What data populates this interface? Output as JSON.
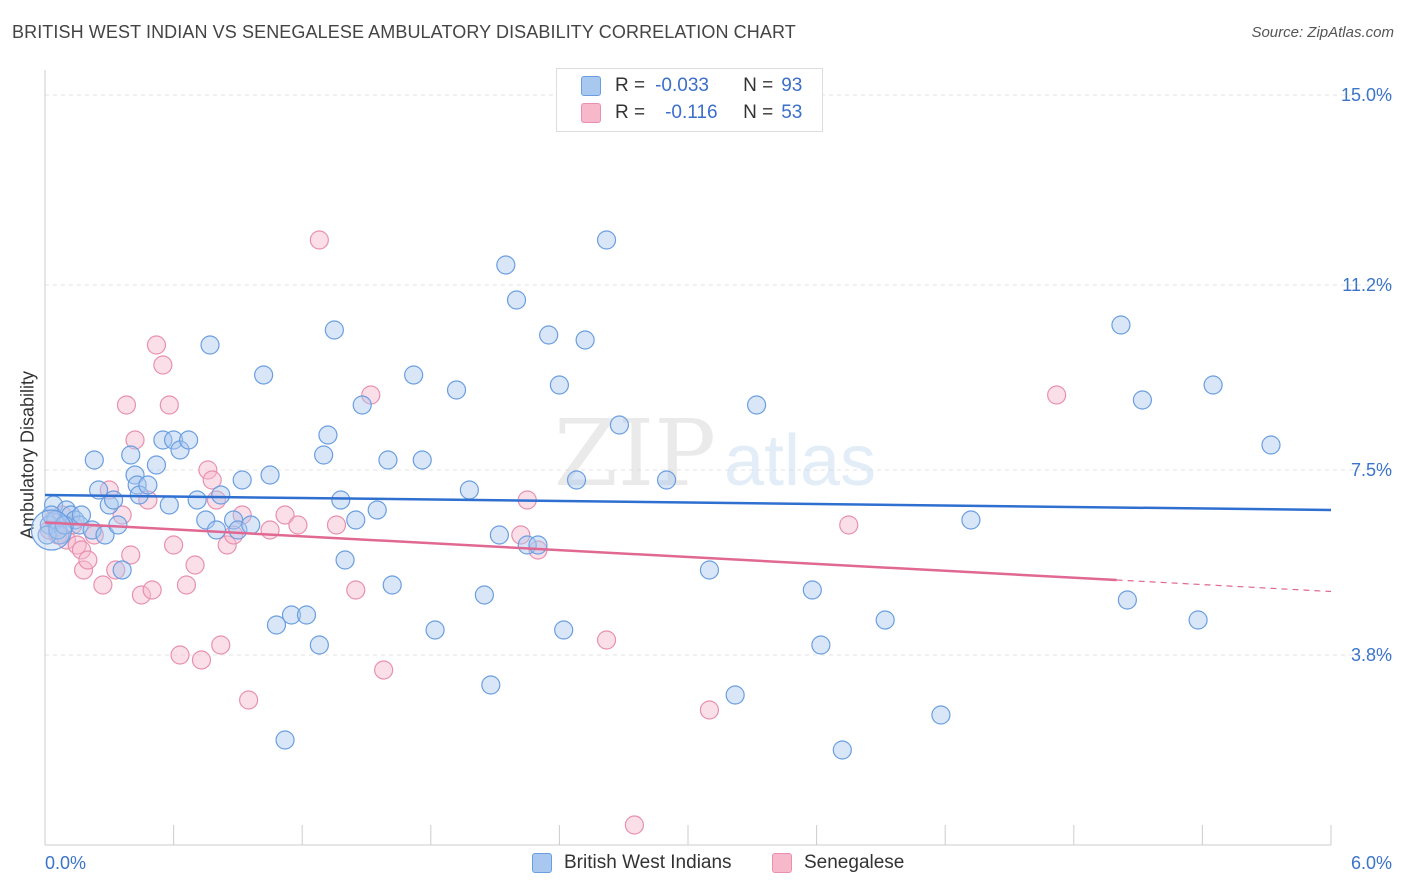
{
  "header": {
    "title": "BRITISH WEST INDIAN VS SENEGALESE AMBULATORY DISABILITY CORRELATION CHART",
    "source": "Source: ZipAtlas.com"
  },
  "watermark": {
    "zip": "ZIP",
    "atlas": "atlas"
  },
  "legend_top": {
    "rows": [
      {
        "r_label": "R =",
        "r_value": "-0.033",
        "n_label": "N =",
        "n_value": "93"
      },
      {
        "r_label": "R =",
        "r_value": "-0.116",
        "n_label": "N =",
        "n_value": "53"
      }
    ]
  },
  "colors": {
    "blue_fill": "#a8c8f0",
    "blue_stroke": "#6a9ee0",
    "blue_line": "#2e6fd0",
    "pink_fill": "#f7b8cc",
    "pink_stroke": "#e890ae",
    "pink_line": "#e06892",
    "tick_text": "#3b74c9",
    "grid": "#e3e3e3"
  },
  "chart_data": {
    "type": "scatter",
    "title": "BRITISH WEST INDIAN VS SENEGALESE AMBULATORY DISABILITY CORRELATION CHART",
    "xlabel": "",
    "ylabel": "Ambulatory Disability",
    "xlim": [
      0,
      6.0
    ],
    "ylim": [
      0,
      15.5
    ],
    "x_tick_labels": [
      "0.0%",
      "6.0%"
    ],
    "y_ticks": [
      3.8,
      7.5,
      11.2,
      15.0
    ],
    "y_tick_labels": [
      "3.8%",
      "7.5%",
      "11.2%",
      "15.0%"
    ],
    "grid": true,
    "legend_position": "bottom-center",
    "series": [
      {
        "name": "British West Indians",
        "r": -0.033,
        "n": 93,
        "trend": {
          "x": [
            0,
            6.0
          ],
          "y": [
            7.0,
            6.7
          ]
        },
        "points": [
          [
            0.02,
            6.4
          ],
          [
            0.04,
            6.8
          ],
          [
            0.05,
            6.5
          ],
          [
            0.07,
            6.2
          ],
          [
            0.1,
            6.7
          ],
          [
            0.12,
            6.6
          ],
          [
            0.14,
            6.5
          ],
          [
            0.16,
            6.4
          ],
          [
            0.17,
            6.6
          ],
          [
            0.22,
            6.3
          ],
          [
            0.23,
            7.7
          ],
          [
            0.25,
            7.1
          ],
          [
            0.28,
            6.2
          ],
          [
            0.3,
            6.8
          ],
          [
            0.32,
            6.9
          ],
          [
            0.36,
            5.5
          ],
          [
            0.4,
            7.8
          ],
          [
            0.42,
            7.4
          ],
          [
            0.43,
            7.2
          ],
          [
            0.44,
            7
          ],
          [
            0.48,
            7.2
          ],
          [
            0.52,
            7.6
          ],
          [
            0.55,
            8.1
          ],
          [
            0.58,
            6.8
          ],
          [
            0.6,
            8.1
          ],
          [
            0.63,
            7.9
          ],
          [
            0.67,
            8.1
          ],
          [
            0.71,
            6.9
          ],
          [
            0.75,
            6.5
          ],
          [
            0.77,
            10
          ],
          [
            0.8,
            6.3
          ],
          [
            0.82,
            7.0
          ],
          [
            0.88,
            6.5
          ],
          [
            0.9,
            6.3
          ],
          [
            0.92,
            7.3
          ],
          [
            0.96,
            6.4
          ],
          [
            1.02,
            9.4
          ],
          [
            1.05,
            7.4
          ],
          [
            1.08,
            4.4
          ],
          [
            1.12,
            2.1
          ],
          [
            1.15,
            4.6
          ],
          [
            1.22,
            4.6
          ],
          [
            1.28,
            4.0
          ],
          [
            1.3,
            7.8
          ],
          [
            1.32,
            8.2
          ],
          [
            1.35,
            10.3
          ],
          [
            1.38,
            6.9
          ],
          [
            1.4,
            5.7
          ],
          [
            1.45,
            6.5
          ],
          [
            1.48,
            8.8
          ],
          [
            1.55,
            6.7
          ],
          [
            1.6,
            7.7
          ],
          [
            1.62,
            5.2
          ],
          [
            1.72,
            9.4
          ],
          [
            1.76,
            7.7
          ],
          [
            1.82,
            4.3
          ],
          [
            1.92,
            9.1
          ],
          [
            1.98,
            7.1
          ],
          [
            2.05,
            5.0
          ],
          [
            2.08,
            3.2
          ],
          [
            2.12,
            6.2
          ],
          [
            2.15,
            11.6
          ],
          [
            2.2,
            10.9
          ],
          [
            2.25,
            6.0
          ],
          [
            2.3,
            6.0
          ],
          [
            2.35,
            10.2
          ],
          [
            2.4,
            9.2
          ],
          [
            2.42,
            4.3
          ],
          [
            2.48,
            7.3
          ],
          [
            2.52,
            10.1
          ],
          [
            2.62,
            12.1
          ],
          [
            2.68,
            8.4
          ],
          [
            2.9,
            7.3
          ],
          [
            3.1,
            5.5
          ],
          [
            3.22,
            3.0
          ],
          [
            3.32,
            8.8
          ],
          [
            3.58,
            5.1
          ],
          [
            3.62,
            4.0
          ],
          [
            3.72,
            1.9
          ],
          [
            3.92,
            4.5
          ],
          [
            4.18,
            2.6
          ],
          [
            4.32,
            6.5
          ],
          [
            5.02,
            10.4
          ],
          [
            5.05,
            4.9
          ],
          [
            5.12,
            8.9
          ],
          [
            5.38,
            4.5
          ],
          [
            5.45,
            9.2
          ],
          [
            5.72,
            8.0
          ],
          [
            0.01,
            6.2
          ],
          [
            0.06,
            6.3
          ],
          [
            0.03,
            6.6
          ],
          [
            0.09,
            6.4
          ],
          [
            0.34,
            6.4
          ]
        ]
      },
      {
        "name": "Senegalese",
        "r": -0.116,
        "n": 53,
        "trend": {
          "x": [
            0,
            5.0
          ],
          "y": [
            6.45,
            5.3
          ]
        },
        "trend_dashed": {
          "x": [
            5.0,
            6.0
          ],
          "y": [
            5.3,
            5.07
          ]
        },
        "points": [
          [
            0.02,
            6.3
          ],
          [
            0.04,
            6.5
          ],
          [
            0.06,
            6.2
          ],
          [
            0.08,
            6.6
          ],
          [
            0.1,
            6.1
          ],
          [
            0.13,
            6.4
          ],
          [
            0.15,
            6.0
          ],
          [
            0.17,
            5.9
          ],
          [
            0.18,
            5.5
          ],
          [
            0.2,
            5.7
          ],
          [
            0.23,
            6.2
          ],
          [
            0.27,
            5.2
          ],
          [
            0.3,
            7.1
          ],
          [
            0.33,
            5.5
          ],
          [
            0.36,
            6.6
          ],
          [
            0.38,
            8.8
          ],
          [
            0.4,
            5.8
          ],
          [
            0.42,
            8.1
          ],
          [
            0.45,
            5.0
          ],
          [
            0.48,
            6.9
          ],
          [
            0.5,
            5.1
          ],
          [
            0.52,
            10.0
          ],
          [
            0.55,
            9.6
          ],
          [
            0.58,
            8.8
          ],
          [
            0.6,
            6.0
          ],
          [
            0.63,
            3.8
          ],
          [
            0.66,
            5.2
          ],
          [
            0.7,
            5.6
          ],
          [
            0.73,
            3.7
          ],
          [
            0.76,
            7.5
          ],
          [
            0.78,
            7.3
          ],
          [
            0.8,
            6.9
          ],
          [
            0.82,
            4.0
          ],
          [
            0.85,
            6.0
          ],
          [
            0.88,
            6.2
          ],
          [
            0.92,
            6.6
          ],
          [
            0.95,
            2.9
          ],
          [
            1.05,
            6.3
          ],
          [
            1.12,
            6.6
          ],
          [
            1.18,
            6.4
          ],
          [
            1.28,
            12.1
          ],
          [
            1.36,
            6.4
          ],
          [
            1.45,
            5.1
          ],
          [
            1.52,
            9.0
          ],
          [
            1.58,
            3.5
          ],
          [
            2.22,
            6.2
          ],
          [
            2.25,
            6.9
          ],
          [
            2.3,
            5.9
          ],
          [
            2.62,
            4.1
          ],
          [
            2.75,
            0.4
          ],
          [
            3.1,
            2.7
          ],
          [
            3.75,
            6.4
          ],
          [
            4.72,
            9.0
          ]
        ]
      }
    ]
  }
}
